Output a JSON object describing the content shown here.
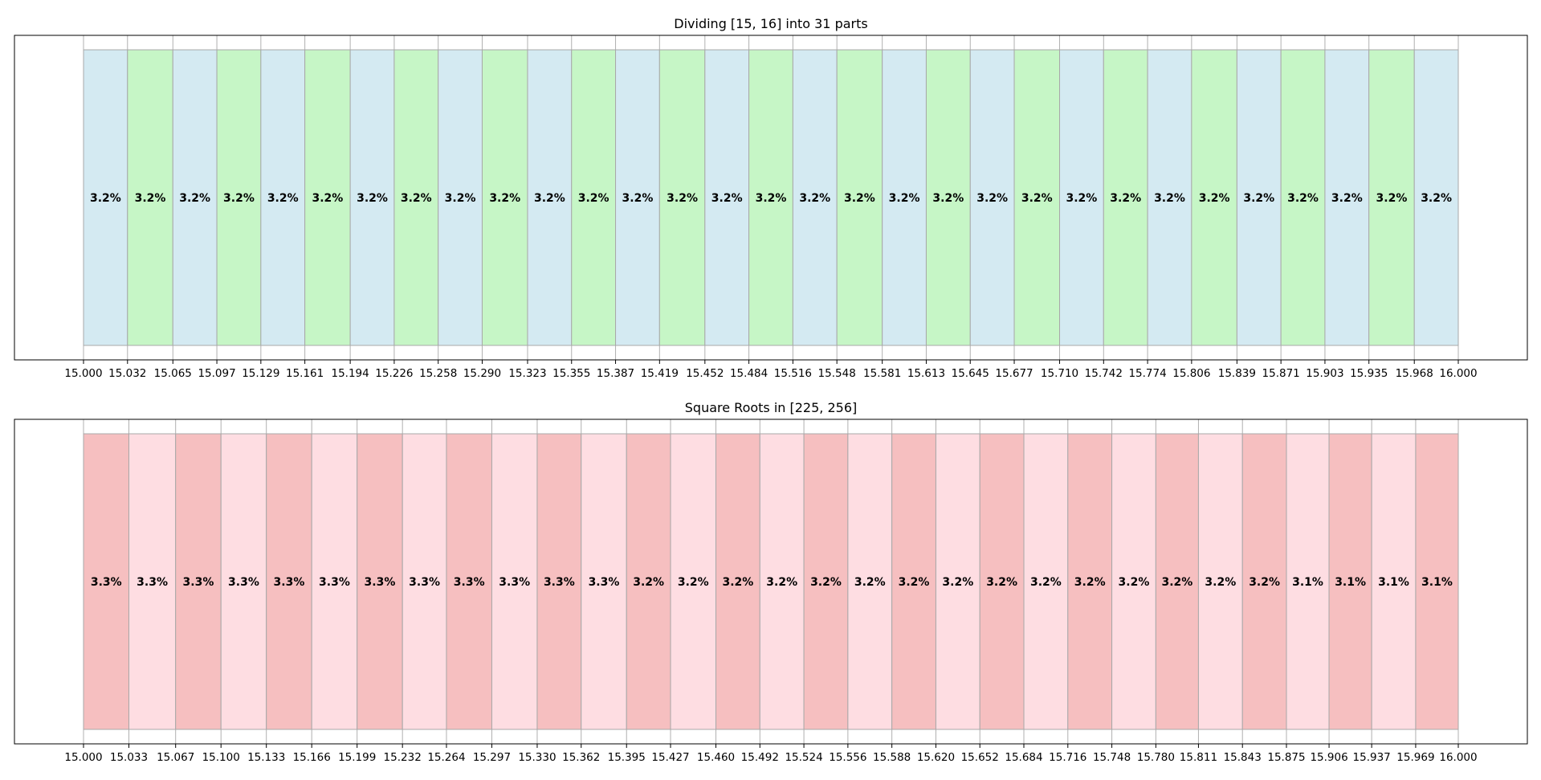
{
  "chart_data": [
    {
      "type": "bar",
      "title": "Dividing [15, 16] into 31 parts",
      "xlim": [
        15.0,
        16.0
      ],
      "colors": [
        "#d4eaf2",
        "#c6f6c6"
      ],
      "edges": [
        15.0,
        15.032,
        15.065,
        15.097,
        15.129,
        15.161,
        15.194,
        15.226,
        15.258,
        15.29,
        15.323,
        15.355,
        15.387,
        15.419,
        15.452,
        15.484,
        15.516,
        15.548,
        15.581,
        15.613,
        15.645,
        15.677,
        15.71,
        15.742,
        15.774,
        15.806,
        15.839,
        15.871,
        15.903,
        15.935,
        15.968,
        16.0
      ],
      "tick_labels": [
        "15.000",
        "15.032",
        "15.065",
        "15.097",
        "15.129",
        "15.161",
        "15.194",
        "15.226",
        "15.258",
        "15.290",
        "15.323",
        "15.355",
        "15.387",
        "15.419",
        "15.452",
        "15.484",
        "15.516",
        "15.548",
        "15.581",
        "15.613",
        "15.645",
        "15.677",
        "15.710",
        "15.742",
        "15.774",
        "15.806",
        "15.839",
        "15.871",
        "15.903",
        "15.935",
        "15.968",
        "16.000"
      ],
      "labels": [
        "3.2%",
        "3.2%",
        "3.2%",
        "3.2%",
        "3.2%",
        "3.2%",
        "3.2%",
        "3.2%",
        "3.2%",
        "3.2%",
        "3.2%",
        "3.2%",
        "3.2%",
        "3.2%",
        "3.2%",
        "3.2%",
        "3.2%",
        "3.2%",
        "3.2%",
        "3.2%",
        "3.2%",
        "3.2%",
        "3.2%",
        "3.2%",
        "3.2%",
        "3.2%",
        "3.2%",
        "3.2%",
        "3.2%",
        "3.2%",
        "3.2%"
      ]
    },
    {
      "type": "bar",
      "title": "Square Roots in [225, 256]",
      "xlim": [
        15.0,
        16.0
      ],
      "colors": [
        "#f6bfc0",
        "#fedde2"
      ],
      "edges": [
        15.0,
        15.033,
        15.067,
        15.1,
        15.133,
        15.166,
        15.199,
        15.232,
        15.264,
        15.297,
        15.33,
        15.362,
        15.395,
        15.427,
        15.46,
        15.492,
        15.524,
        15.556,
        15.588,
        15.62,
        15.652,
        15.684,
        15.716,
        15.748,
        15.78,
        15.811,
        15.843,
        15.875,
        15.906,
        15.937,
        15.969,
        16.0
      ],
      "tick_labels": [
        "15.000",
        "15.033",
        "15.067",
        "15.100",
        "15.133",
        "15.166",
        "15.199",
        "15.232",
        "15.264",
        "15.297",
        "15.330",
        "15.362",
        "15.395",
        "15.427",
        "15.460",
        "15.492",
        "15.524",
        "15.556",
        "15.588",
        "15.620",
        "15.652",
        "15.684",
        "15.716",
        "15.748",
        "15.780",
        "15.811",
        "15.843",
        "15.875",
        "15.906",
        "15.937",
        "15.969",
        "16.000"
      ],
      "labels": [
        "3.3%",
        "3.3%",
        "3.3%",
        "3.3%",
        "3.3%",
        "3.3%",
        "3.3%",
        "3.3%",
        "3.3%",
        "3.3%",
        "3.3%",
        "3.3%",
        "3.2%",
        "3.2%",
        "3.2%",
        "3.2%",
        "3.2%",
        "3.2%",
        "3.2%",
        "3.2%",
        "3.2%",
        "3.2%",
        "3.2%",
        "3.2%",
        "3.2%",
        "3.2%",
        "3.2%",
        "3.1%",
        "3.1%",
        "3.1%",
        "3.1%"
      ]
    }
  ]
}
